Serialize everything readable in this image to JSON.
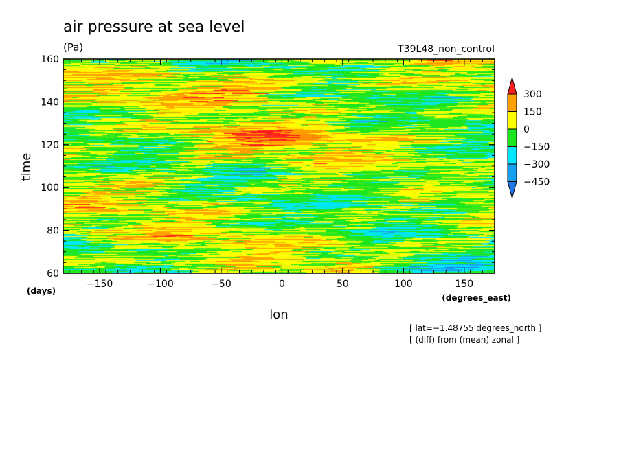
{
  "chart_data": {
    "type": "heatmap",
    "title": "air pressure at sea level",
    "units": "(Pa)",
    "run_label": "T39L48_non_control",
    "xlabel": "lon",
    "xunits": "(degrees_east)",
    "ylabel": "time",
    "yunits": "(days)",
    "xlim": [
      -180,
      175
    ],
    "ylim": [
      60,
      160
    ],
    "x_ticks": [
      -150,
      -100,
      -50,
      0,
      50,
      100,
      150
    ],
    "x_tick_labels": [
      "−150",
      "−100",
      "−50",
      "0",
      "50",
      "100",
      "150"
    ],
    "y_ticks": [
      60,
      80,
      100,
      120,
      140,
      160
    ],
    "y_tick_labels": [
      "60",
      "80",
      "100",
      "120",
      "140",
      "160"
    ],
    "colorbar": {
      "levels": [
        -450,
        -300,
        -150,
        0,
        150,
        300
      ],
      "labels": [
        "−450",
        "−300",
        "−150",
        "0",
        "150",
        "300"
      ],
      "colors": [
        "#1e78e6",
        "#15a0f0",
        "#00e6ff",
        "#1ee61e",
        "#ffff00",
        "#ffa000",
        "#ff1e1e"
      ]
    },
    "notes": [
      "[ lat=−1.48755 degrees_north ]",
      "[ (diff) from (mean) zonal ]"
    ]
  }
}
